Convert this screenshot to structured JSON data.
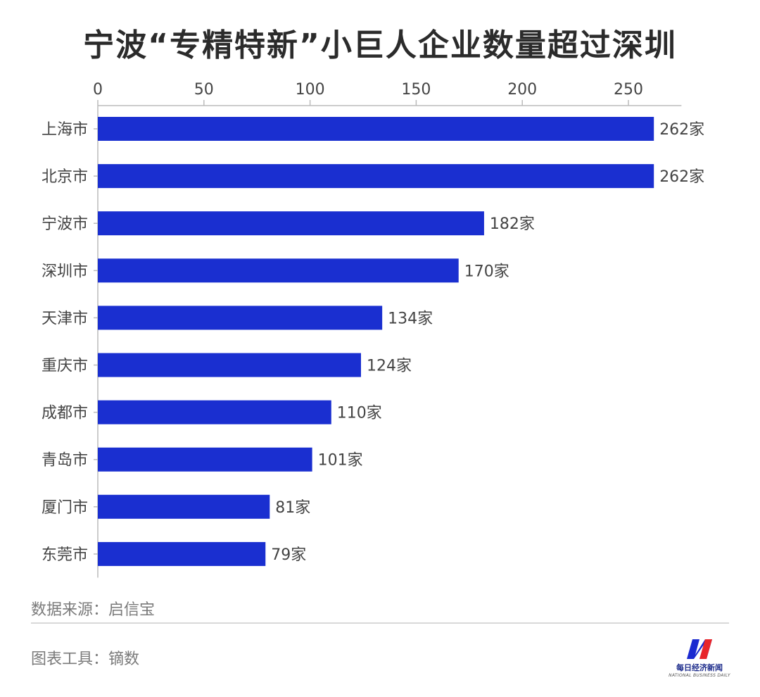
{
  "title": "宁波“专精特新”小巨人企业数量超过深圳",
  "source_label": "数据来源：启信宝",
  "tool_label": "图表工具：镝数",
  "logo": {
    "cn": "每日经济新闻",
    "en": "NATIONAL BUSINESS DAILY",
    "icon": "nbd-logo-icon"
  },
  "colors": {
    "bar": "#1a2fd0",
    "text": "#444444",
    "axis": "#bbbbbb"
  },
  "chart_data": {
    "type": "bar",
    "orientation": "horizontal",
    "title": "宁波“专精特新”小巨人企业数量超过深圳",
    "categories": [
      "上海市",
      "北京市",
      "宁波市",
      "深圳市",
      "天津市",
      "重庆市",
      "成都市",
      "青岛市",
      "厦门市",
      "东莞市"
    ],
    "values": [
      262,
      262,
      182,
      170,
      134,
      124,
      110,
      101,
      81,
      79
    ],
    "value_labels": [
      "262家",
      "262家",
      "182家",
      "170家",
      "134家",
      "124家",
      "110家",
      "101家",
      "81家",
      "79家"
    ],
    "xticks": [
      "0",
      "50",
      "100",
      "150",
      "200",
      "250"
    ],
    "xlim": [
      0,
      275
    ],
    "axis_position": "top",
    "grid": false,
    "legend": "none"
  }
}
